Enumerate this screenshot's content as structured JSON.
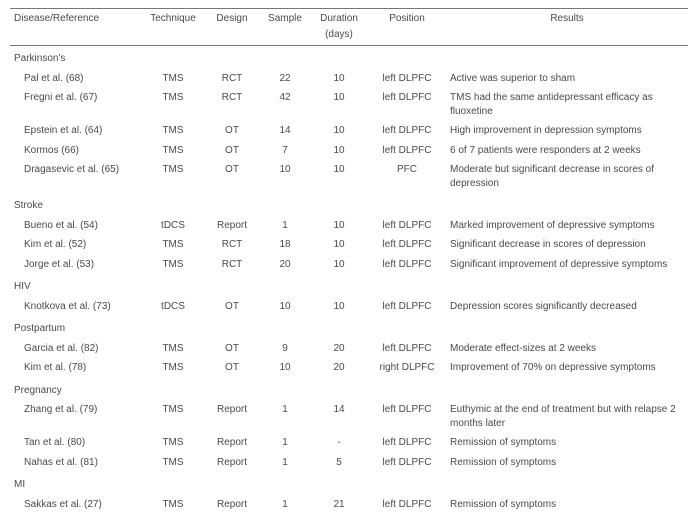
{
  "headers": {
    "ref": "Disease/Reference",
    "tech": "Technique",
    "design": "Design",
    "sample": "Sample",
    "dur1": "Duration",
    "dur2": "(days)",
    "pos": "Position",
    "res": "Results"
  },
  "sections": [
    {
      "title": "Parkinson's",
      "rows": [
        {
          "ref": "Pal et al. (68)",
          "tech": "TMS",
          "design": "RCT",
          "sample": "22",
          "dur": "10",
          "pos": "left DLPFC",
          "res": "Active was superior to sham"
        },
        {
          "ref": "Fregni et al. (67)",
          "tech": "TMS",
          "design": "RCT",
          "sample": "42",
          "dur": "10",
          "pos": "left DLPFC",
          "res": "TMS had the same antidepressant efficacy as fluoxetine"
        },
        {
          "ref": "Epstein et al. (64)",
          "tech": "TMS",
          "design": "OT",
          "sample": "14",
          "dur": "10",
          "pos": "left DLPFC",
          "res": "High improvement in depression symptoms"
        },
        {
          "ref": "Kormos (66)",
          "tech": "TMS",
          "design": "OT",
          "sample": "7",
          "dur": "10",
          "pos": "left DLPFC",
          "res": "6 of 7 patients were responders at 2 weeks"
        },
        {
          "ref": "Dragasevic et al. (65)",
          "tech": "TMS",
          "design": "OT",
          "sample": "10",
          "dur": "10",
          "pos": "PFC",
          "res": "Moderate but significant decrease in scores of depression"
        }
      ]
    },
    {
      "title": "Stroke",
      "rows": [
        {
          "ref": "Bueno et al. (54)",
          "tech": "tDCS",
          "design": "Report",
          "sample": "1",
          "dur": "10",
          "pos": "left DLPFC",
          "res": "Marked improvement of depressive symptoms"
        },
        {
          "ref": "Kim et al. (52)",
          "tech": "TMS",
          "design": "RCT",
          "sample": "18",
          "dur": "10",
          "pos": "left DLPFC",
          "res": "Significant decrease in scores of depression"
        },
        {
          "ref": "Jorge et al. (53)",
          "tech": "TMS",
          "design": "RCT",
          "sample": "20",
          "dur": "10",
          "pos": "left DLPFC",
          "res": "Significant improvement of depressive symptoms"
        }
      ]
    },
    {
      "title": "HIV",
      "rows": [
        {
          "ref": "Knotkova et al. (73)",
          "tech": "tDCS",
          "design": "OT",
          "sample": "10",
          "dur": "10",
          "pos": "left DLPFC",
          "res": "Depression scores significantly decreased"
        }
      ]
    },
    {
      "title": "Postpartum",
      "rows": [
        {
          "ref": "Garcia et al. (82)",
          "tech": "TMS",
          "design": "OT",
          "sample": "9",
          "dur": "20",
          "pos": "left DLPFC",
          "res": "Moderate effect-sizes at 2 weeks"
        },
        {
          "ref": "Kim et al. (78)",
          "tech": "TMS",
          "design": "OT",
          "sample": "10",
          "dur": "20",
          "pos": "right DLPFC",
          "res": "Improvement of 70% on depressive symptoms"
        }
      ]
    },
    {
      "title": "Pregnancy",
      "rows": [
        {
          "ref": "Zhang et al. (79)",
          "tech": "TMS",
          "design": "Report",
          "sample": "1",
          "dur": "14",
          "pos": "left DLPFC",
          "res": "Euthymic at the end of treatment but with relapse 2 months later"
        },
        {
          "ref": "Tan et al. (80)",
          "tech": "TMS",
          "design": "Report",
          "sample": "1",
          "dur": "-",
          "pos": "left DLPFC",
          "res": "Remission of symptoms"
        },
        {
          "ref": "Nahas et al. (81)",
          "tech": "TMS",
          "design": "Report",
          "sample": "1",
          "dur": "5",
          "pos": "left DLPFC",
          "res": "Remission of symptoms"
        }
      ]
    },
    {
      "title": "MI",
      "rows": [
        {
          "ref": "Sakkas et al. (27)",
          "tech": "TMS",
          "design": "Report",
          "sample": "1",
          "dur": "21",
          "pos": "left DLPFC",
          "res": "Remission of symptoms"
        }
      ]
    }
  ]
}
